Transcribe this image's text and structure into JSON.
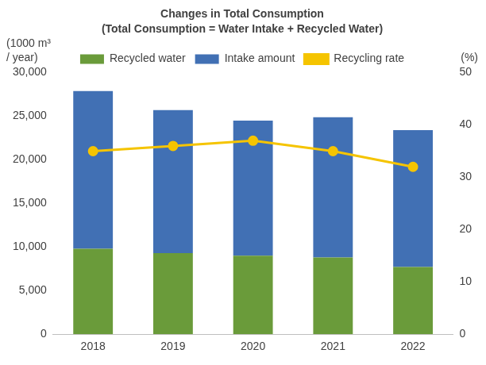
{
  "chart_data": {
    "type": "bar",
    "title": "Changes in Total Consumption",
    "subtitle": "(Total Consumption = Water Intake + Recycled Water)",
    "y_label": "(1000 m³ / year)",
    "y2_label": "(%)",
    "categories": [
      "2018",
      "2019",
      "2020",
      "2021",
      "2022"
    ],
    "stacked": true,
    "grid": false,
    "legend": "top",
    "series": [
      {
        "name": "Recycled water",
        "color": "#6a9b3a",
        "values": [
          9800,
          9300,
          9000,
          8800,
          7700
        ]
      },
      {
        "name": "Intake amount",
        "color": "#4170b4",
        "values": [
          18100,
          16400,
          15500,
          16100,
          15700
        ]
      },
      {
        "name": "Recycling rate",
        "type": "line",
        "marker": "circle",
        "axis": "y2",
        "color": "#f5c400",
        "values": [
          35,
          36,
          37,
          35,
          32
        ]
      }
    ],
    "ylim": [
      0,
      30000
    ],
    "yticks": [
      0,
      {
        "value": 5000,
        "label": "5,000"
      },
      {
        "value": 10000,
        "label": "10,000"
      },
      {
        "value": 15000,
        "label": "15,000"
      },
      {
        "value": 20000,
        "label": "20,000"
      },
      {
        "value": 25000,
        "label": "25,000"
      },
      {
        "value": 30000,
        "label": "30,000"
      }
    ],
    "y2lim": [
      0,
      50
    ],
    "y2ticks": [
      0,
      10,
      20,
      30,
      40,
      50
    ]
  }
}
